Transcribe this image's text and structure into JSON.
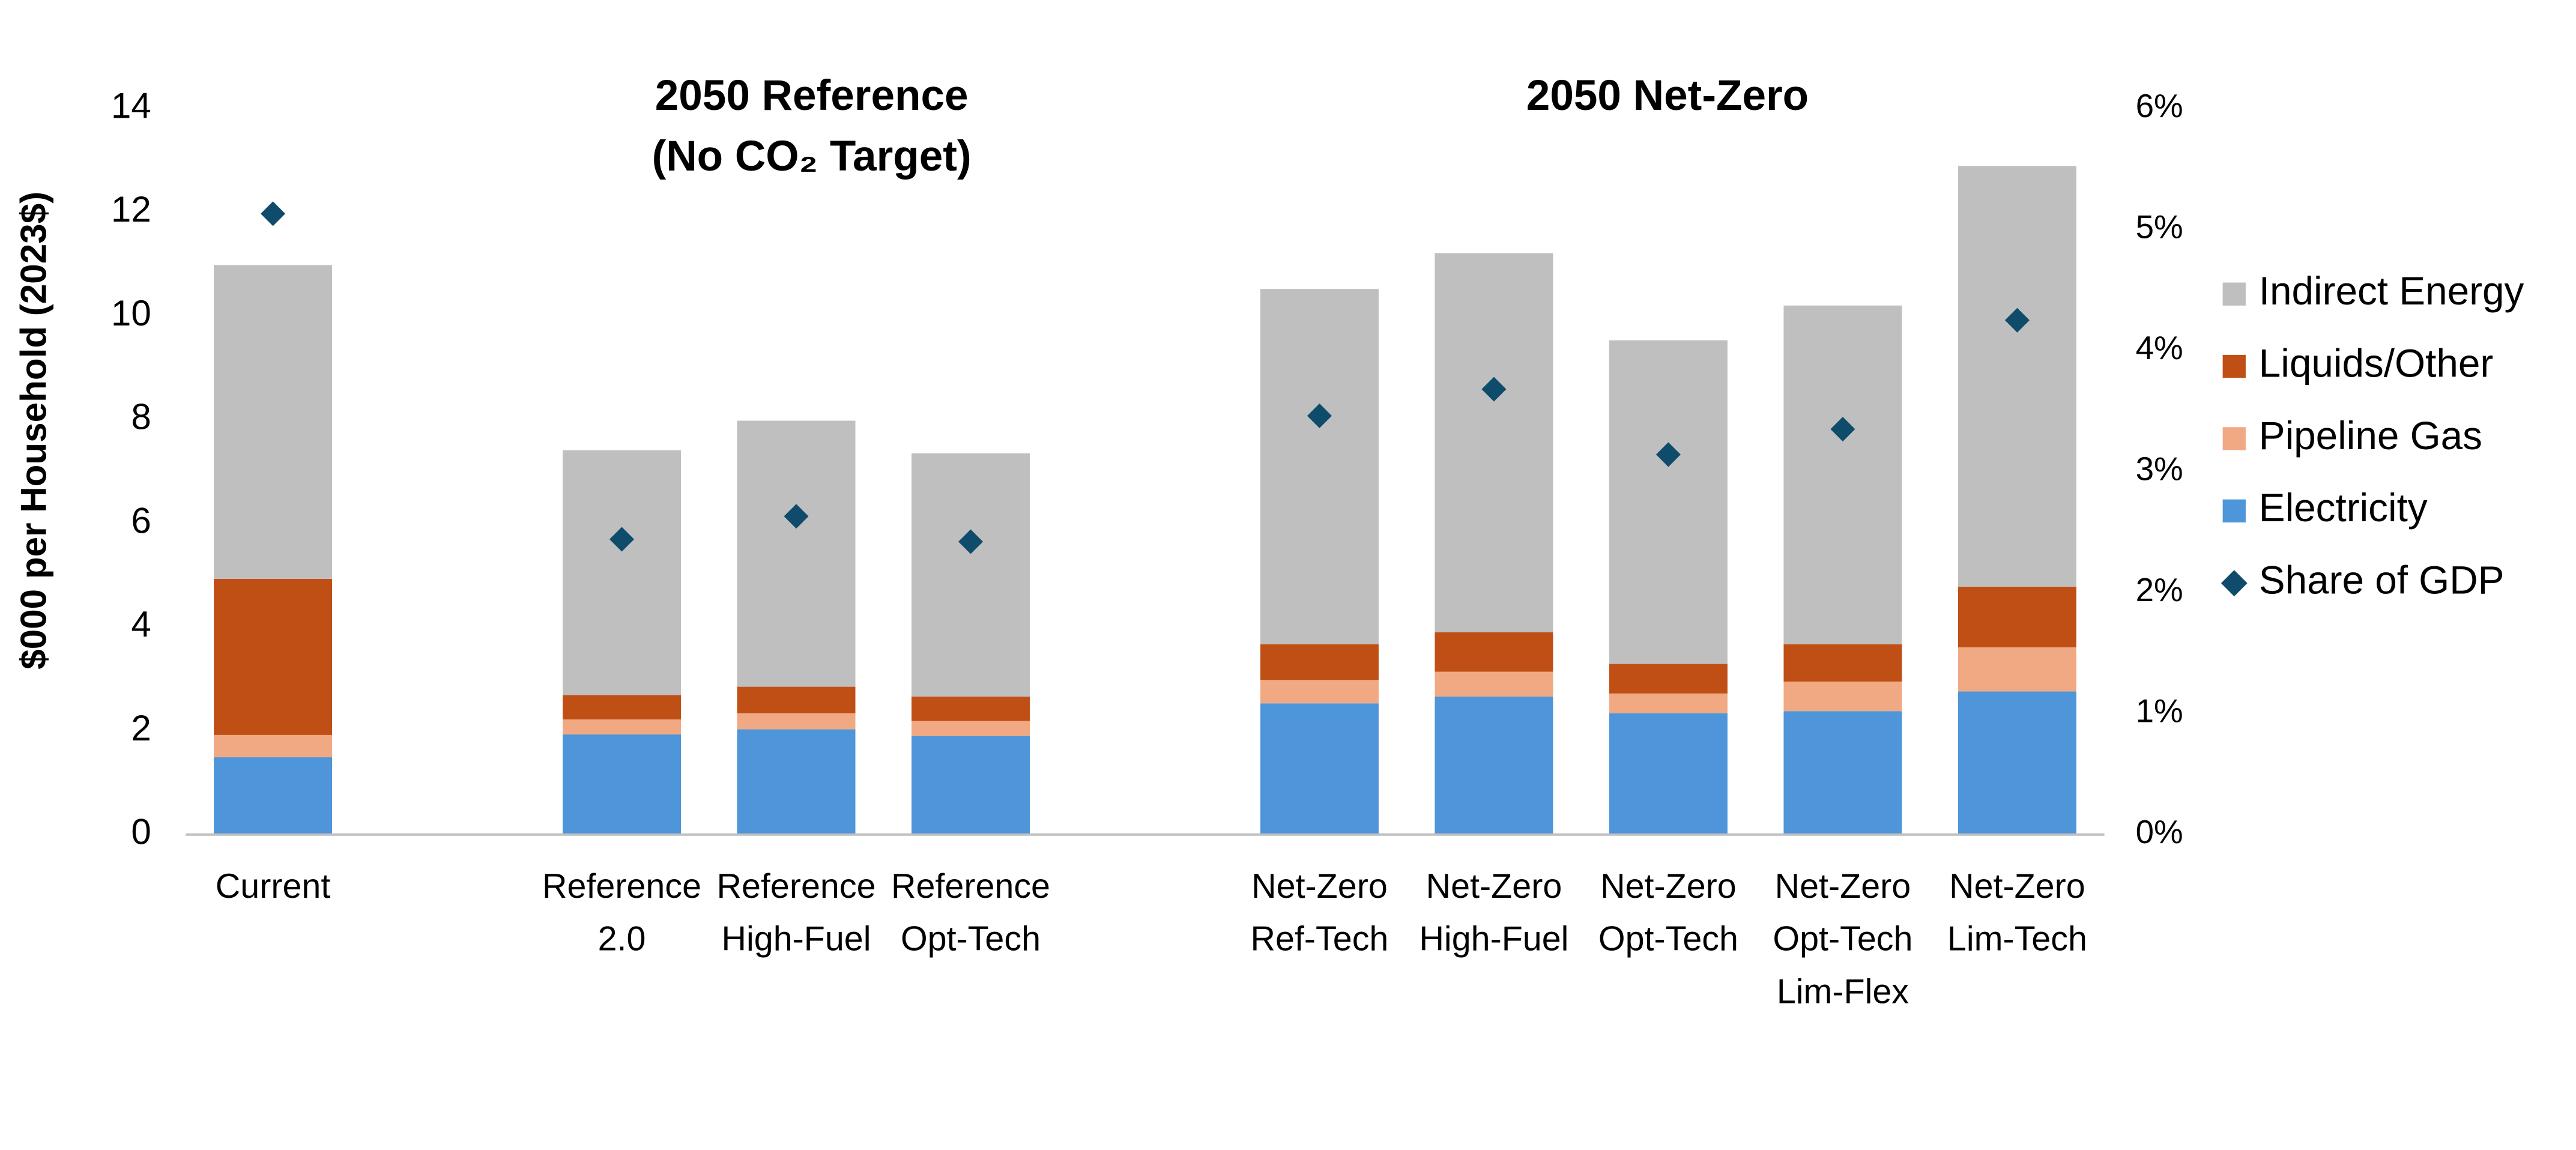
{
  "chart_data": {
    "type": "bar",
    "stacked": true,
    "y_label": "$000 per Household (2023$)",
    "annotations": [
      [
        "2050 Reference",
        "(No CO₂ Target)"
      ],
      [
        "2050 Net-Zero"
      ]
    ],
    "categories": [
      [
        "Current"
      ],
      null,
      [
        "Reference",
        "2.0"
      ],
      [
        "Reference",
        "High-Fuel"
      ],
      [
        "Reference",
        "Opt-Tech"
      ],
      null,
      [
        "Net-Zero",
        "Ref-Tech"
      ],
      [
        "Net-Zero",
        "High-Fuel"
      ],
      [
        "Net-Zero",
        "Opt-Tech"
      ],
      [
        "Net-Zero",
        "Opt-Tech",
        "Lim-Flex"
      ],
      [
        "Net-Zero",
        "Lim-Tech"
      ]
    ],
    "series": [
      {
        "name": "Electricity",
        "color": "#4e95d9",
        "values": [
          1.49,
          null,
          1.93,
          2.03,
          1.9,
          null,
          2.53,
          2.66,
          2.34,
          2.38,
          2.76
        ]
      },
      {
        "name": "Pipeline Gas",
        "color": "#f1a983",
        "values": [
          0.43,
          null,
          0.29,
          0.31,
          0.29,
          null,
          0.45,
          0.48,
          0.38,
          0.57,
          0.85
        ]
      },
      {
        "name": "Liquids/Other",
        "color": "#c04f15",
        "values": [
          3.01,
          null,
          0.47,
          0.51,
          0.47,
          null,
          0.69,
          0.76,
          0.57,
          0.72,
          1.17
        ]
      },
      {
        "name": "Indirect Energy",
        "color": "#bfbfbf",
        "values": [
          6.05,
          null,
          4.72,
          5.13,
          4.69,
          null,
          6.85,
          7.31,
          6.24,
          6.53,
          8.11
        ]
      },
      {
        "name": "Share of GDP",
        "color": "#0f4c6b",
        "type": "scatter",
        "marker": "diamond",
        "axis": "y2",
        "values": [
          5.13,
          null,
          2.44,
          2.63,
          2.42,
          null,
          3.46,
          3.68,
          3.14,
          3.35,
          4.25
        ]
      }
    ],
    "ylim": [
      0,
      14
    ],
    "yticks": [
      0,
      2,
      4,
      6,
      8,
      10,
      12,
      14
    ],
    "y2lim": [
      0,
      6
    ],
    "y2ticks": [
      {
        "value": 0,
        "label": "0%"
      },
      {
        "value": 1,
        "label": "1%"
      },
      {
        "value": 2,
        "label": "2%"
      },
      {
        "value": 3,
        "label": "3%"
      },
      {
        "value": 4,
        "label": "4%"
      },
      {
        "value": 5,
        "label": "5%"
      },
      {
        "value": 6,
        "label": "6%"
      }
    ],
    "legend": "right",
    "grid": false
  }
}
